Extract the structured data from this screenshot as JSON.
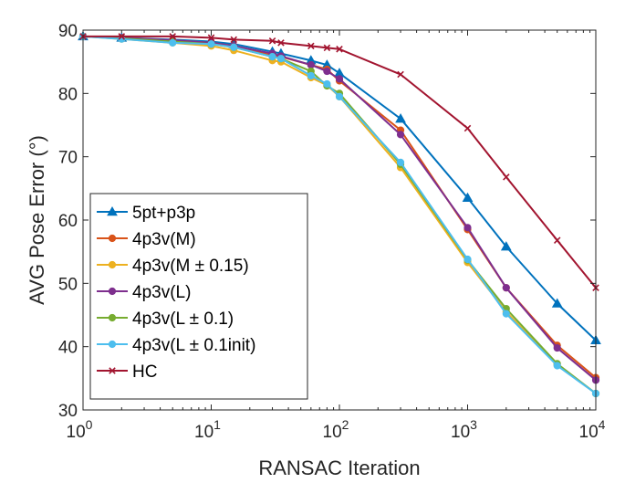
{
  "chart_data": {
    "type": "line",
    "title": "",
    "xlabel": "RANSAC Iteration",
    "ylabel": "AVG Pose Error (°)",
    "xscale": "log",
    "xlim": [
      1,
      10000
    ],
    "ylim": [
      30,
      90
    ],
    "x_ticks": [
      {
        "value": 1,
        "base": "10",
        "exp": "0"
      },
      {
        "value": 10,
        "base": "10",
        "exp": "1"
      },
      {
        "value": 100,
        "base": "10",
        "exp": "2"
      },
      {
        "value": 1000,
        "base": "10",
        "exp": "3"
      },
      {
        "value": 10000,
        "base": "10",
        "exp": "4"
      }
    ],
    "y_ticks": [
      30,
      40,
      50,
      60,
      70,
      80,
      90
    ],
    "y_tick_labels": [
      "30",
      "40",
      "50",
      "60",
      "70",
      "80",
      "90"
    ],
    "legend_position": "lower-left",
    "series": [
      {
        "name": "5pt+p3p",
        "color": "#0072BD",
        "marker": "triangle",
        "x": [
          1,
          2,
          5,
          10,
          15,
          30,
          35,
          60,
          80,
          100,
          300,
          1000,
          2000,
          5000,
          10000
        ],
        "y": [
          89,
          88.8,
          88.5,
          88.2,
          87.8,
          86.6,
          86.3,
          85.2,
          84.5,
          83.2,
          76,
          63.5,
          55.8,
          46.8,
          41
        ]
      },
      {
        "name": "4p3v(M)",
        "color": "#D95319",
        "marker": "circle",
        "x": [
          1,
          2,
          5,
          10,
          15,
          30,
          35,
          60,
          80,
          100,
          300,
          1000,
          2000,
          5000,
          10000
        ],
        "y": [
          89,
          88.8,
          88.4,
          88,
          87.5,
          86,
          85.8,
          84.5,
          83.8,
          82,
          74.2,
          58.5,
          49.3,
          40.2,
          35.1
        ]
      },
      {
        "name": "4p3v(M ± 0.15)",
        "color": "#EDB120",
        "marker": "circle",
        "x": [
          1,
          2,
          5,
          10,
          15,
          30,
          35,
          60,
          80,
          100,
          300,
          1000,
          2000,
          5000,
          10000
        ],
        "y": [
          89,
          88.6,
          88,
          87.5,
          86.8,
          85.2,
          85,
          82.5,
          81.3,
          79.5,
          68.3,
          53.3,
          45.5,
          37.1,
          32.6
        ]
      },
      {
        "name": "4p3v(L)",
        "color": "#7E2F8E",
        "marker": "circle",
        "x": [
          1,
          2,
          5,
          10,
          15,
          30,
          35,
          60,
          80,
          100,
          300,
          1000,
          2000,
          5000,
          10000
        ],
        "y": [
          89,
          88.8,
          88.4,
          88,
          87.5,
          86.3,
          85.9,
          84.5,
          83.5,
          82.3,
          73.5,
          58.8,
          49.3,
          39.8,
          34.7
        ]
      },
      {
        "name": "4p3v(L ± 0.1)",
        "color": "#77AC30",
        "marker": "circle",
        "x": [
          1,
          2,
          5,
          10,
          15,
          30,
          35,
          60,
          80,
          100,
          300,
          1000,
          2000,
          5000,
          10000
        ],
        "y": [
          89,
          88.7,
          88.2,
          87.8,
          87.3,
          85.8,
          85.5,
          83.5,
          81.2,
          80,
          68.8,
          53.7,
          46,
          37.3,
          32.6
        ]
      },
      {
        "name": "4p3v(L ± 0.1init)",
        "color": "#4DBEEE",
        "marker": "circle",
        "x": [
          1,
          2,
          5,
          10,
          15,
          30,
          35,
          60,
          80,
          100,
          300,
          1000,
          2000,
          5000,
          10000
        ],
        "y": [
          89,
          88.6,
          88,
          87.8,
          87.3,
          85.8,
          85.5,
          82.8,
          81.5,
          79.5,
          69.1,
          53.8,
          45.2,
          37,
          32.6
        ]
      },
      {
        "name": "HC",
        "color": "#A2142F",
        "marker": "x",
        "x": [
          1,
          2,
          5,
          10,
          15,
          30,
          35,
          60,
          80,
          100,
          300,
          1000,
          2000,
          5000,
          10000
        ],
        "y": [
          89,
          89,
          89,
          88.8,
          88.5,
          88.3,
          88,
          87.5,
          87.2,
          87,
          83,
          74.5,
          66.8,
          56.8,
          49.3
        ]
      }
    ]
  }
}
